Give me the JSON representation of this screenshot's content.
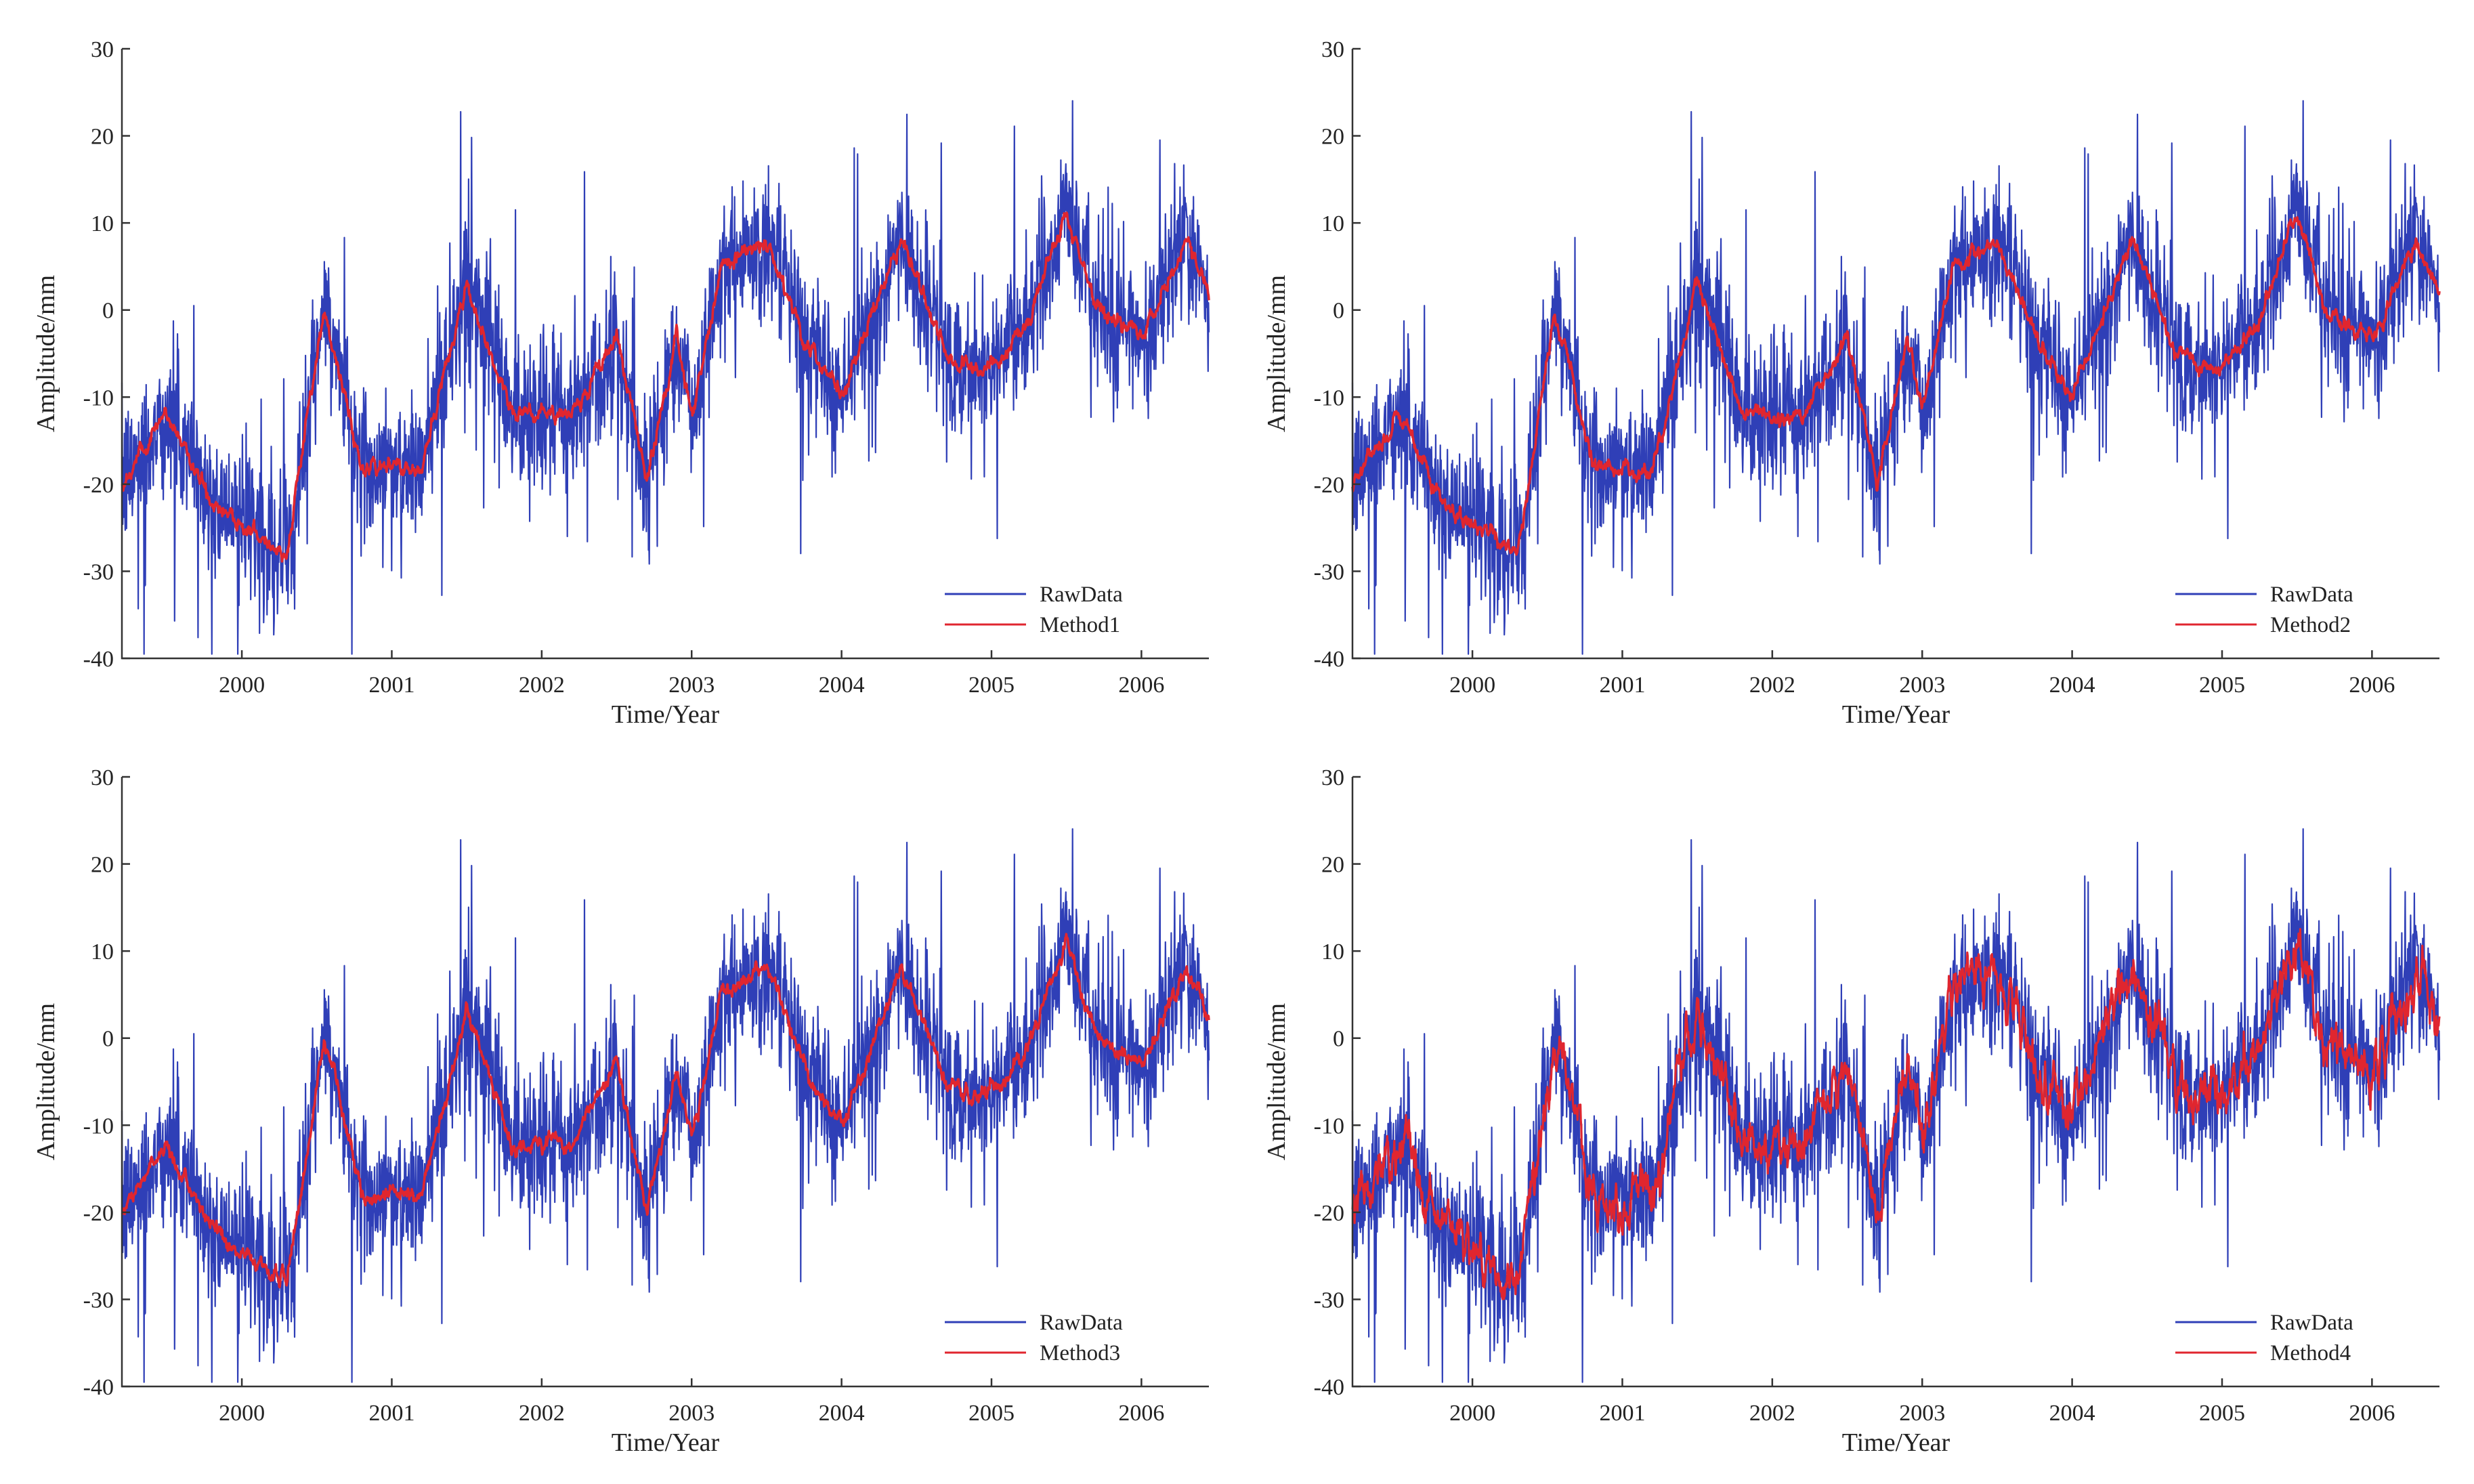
{
  "colors": {
    "raw": "#2f3fb7",
    "fitted": "#e0262f",
    "axis": "#333333",
    "background": "#ffffff"
  },
  "chart_data": [
    {
      "type": "line",
      "xlabel": "Time/Year",
      "ylabel": "Amplitude/mm",
      "xlim": [
        1999.2,
        2006.45
      ],
      "ylim": [
        -40,
        30
      ],
      "yticks": [
        30,
        20,
        10,
        0,
        -10,
        -20,
        -30,
        -40
      ],
      "xticks": [
        2000,
        2001,
        2002,
        2003,
        2004,
        2005,
        2006
      ],
      "legend_position": "bottom-right",
      "series": [
        {
          "name": "RawData",
          "color": "#2f3fb7",
          "kind": "raw daily displacement",
          "envelope": [
            [
              1999.2,
              -20
            ],
            [
              1999.5,
              -12
            ],
            [
              1999.8,
              -22
            ],
            [
              2000.05,
              -25
            ],
            [
              2000.3,
              -28
            ],
            [
              2000.55,
              0
            ],
            [
              2000.8,
              -18
            ],
            [
              2001.2,
              -18
            ],
            [
              2001.5,
              3
            ],
            [
              2001.8,
              -12
            ],
            [
              2002.2,
              -12
            ],
            [
              2002.5,
              -3
            ],
            [
              2002.7,
              -20
            ],
            [
              2002.9,
              -3
            ],
            [
              2003.0,
              -12
            ],
            [
              2003.2,
              5
            ],
            [
              2003.5,
              8
            ],
            [
              2003.8,
              -5
            ],
            [
              2004.0,
              -10
            ],
            [
              2004.4,
              8
            ],
            [
              2004.7,
              -5
            ],
            [
              2004.9,
              -7
            ],
            [
              2005.2,
              -3
            ],
            [
              2005.5,
              11
            ],
            [
              2005.7,
              0
            ],
            [
              2006.0,
              -3
            ],
            [
              2006.3,
              8
            ],
            [
              2006.45,
              2
            ]
          ]
        },
        {
          "name": "Method1",
          "color": "#e0262f",
          "kind": "fitted"
        }
      ]
    },
    {
      "type": "line",
      "xlabel": "Time/Year",
      "ylabel": "Amplitude/mm",
      "xlim": [
        1999.2,
        2006.45
      ],
      "ylim": [
        -40,
        30
      ],
      "yticks": [
        30,
        20,
        10,
        0,
        -10,
        -20,
        -30,
        -40
      ],
      "xticks": [
        2000,
        2001,
        2002,
        2003,
        2004,
        2005,
        2006
      ],
      "legend_position": "bottom-right",
      "series": [
        {
          "name": "RawData",
          "color": "#2f3fb7",
          "kind": "raw daily displacement",
          "envelope": [
            [
              1999.2,
              -20
            ],
            [
              1999.5,
              -12
            ],
            [
              1999.8,
              -22
            ],
            [
              2000.05,
              -25
            ],
            [
              2000.3,
              -28
            ],
            [
              2000.55,
              0
            ],
            [
              2000.8,
              -18
            ],
            [
              2001.2,
              -18
            ],
            [
              2001.5,
              3
            ],
            [
              2001.8,
              -12
            ],
            [
              2002.2,
              -12
            ],
            [
              2002.5,
              -3
            ],
            [
              2002.7,
              -20
            ],
            [
              2002.9,
              -3
            ],
            [
              2003.0,
              -12
            ],
            [
              2003.2,
              5
            ],
            [
              2003.5,
              8
            ],
            [
              2003.8,
              -5
            ],
            [
              2004.0,
              -10
            ],
            [
              2004.4,
              8
            ],
            [
              2004.7,
              -5
            ],
            [
              2004.9,
              -7
            ],
            [
              2005.2,
              -3
            ],
            [
              2005.5,
              11
            ],
            [
              2005.7,
              0
            ],
            [
              2006.0,
              -3
            ],
            [
              2006.3,
              8
            ],
            [
              2006.45,
              2
            ]
          ]
        },
        {
          "name": "Method2",
          "color": "#e0262f",
          "kind": "fitted"
        }
      ]
    },
    {
      "type": "line",
      "xlabel": "Time/Year",
      "ylabel": "Amplitude/mm",
      "xlim": [
        1999.2,
        2006.45
      ],
      "ylim": [
        -40,
        30
      ],
      "yticks": [
        30,
        20,
        10,
        0,
        -10,
        -20,
        -30,
        -40
      ],
      "xticks": [
        2000,
        2001,
        2002,
        2003,
        2004,
        2005,
        2006
      ],
      "legend_position": "bottom-right",
      "series": [
        {
          "name": "RawData",
          "color": "#2f3fb7",
          "kind": "raw daily displacement",
          "envelope": [
            [
              1999.2,
              -20
            ],
            [
              1999.5,
              -12
            ],
            [
              1999.8,
              -22
            ],
            [
              2000.05,
              -25
            ],
            [
              2000.3,
              -28
            ],
            [
              2000.55,
              0
            ],
            [
              2000.8,
              -18
            ],
            [
              2001.2,
              -18
            ],
            [
              2001.5,
              3
            ],
            [
              2001.8,
              -12
            ],
            [
              2002.2,
              -12
            ],
            [
              2002.5,
              -3
            ],
            [
              2002.7,
              -20
            ],
            [
              2002.9,
              -3
            ],
            [
              2003.0,
              -12
            ],
            [
              2003.2,
              5
            ],
            [
              2003.5,
              8
            ],
            [
              2003.8,
              -5
            ],
            [
              2004.0,
              -10
            ],
            [
              2004.4,
              8
            ],
            [
              2004.7,
              -5
            ],
            [
              2004.9,
              -7
            ],
            [
              2005.2,
              -3
            ],
            [
              2005.5,
              11
            ],
            [
              2005.7,
              0
            ],
            [
              2006.0,
              -3
            ],
            [
              2006.3,
              8
            ],
            [
              2006.45,
              2
            ]
          ]
        },
        {
          "name": "Method3",
          "color": "#e0262f",
          "kind": "fitted"
        }
      ]
    },
    {
      "type": "line",
      "xlabel": "Time/Year",
      "ylabel": "Amplitude/mm",
      "xlim": [
        1999.2,
        2006.45
      ],
      "ylim": [
        -40,
        30
      ],
      "yticks": [
        30,
        20,
        10,
        0,
        -10,
        -20,
        -30,
        -40
      ],
      "xticks": [
        2000,
        2001,
        2002,
        2003,
        2004,
        2005,
        2006
      ],
      "legend_position": "bottom-right",
      "series": [
        {
          "name": "RawData",
          "color": "#2f3fb7",
          "kind": "raw daily displacement",
          "envelope": [
            [
              1999.2,
              -20
            ],
            [
              1999.5,
              -12
            ],
            [
              1999.8,
              -22
            ],
            [
              2000.05,
              -25
            ],
            [
              2000.3,
              -28
            ],
            [
              2000.55,
              0
            ],
            [
              2000.8,
              -18
            ],
            [
              2001.2,
              -18
            ],
            [
              2001.5,
              3
            ],
            [
              2001.8,
              -12
            ],
            [
              2002.2,
              -12
            ],
            [
              2002.5,
              -3
            ],
            [
              2002.7,
              -20
            ],
            [
              2002.9,
              -3
            ],
            [
              2003.0,
              -12
            ],
            [
              2003.2,
              5
            ],
            [
              2003.5,
              8
            ],
            [
              2003.8,
              -5
            ],
            [
              2004.0,
              -10
            ],
            [
              2004.4,
              8
            ],
            [
              2004.7,
              -5
            ],
            [
              2004.9,
              -7
            ],
            [
              2005.2,
              -3
            ],
            [
              2005.5,
              11
            ],
            [
              2005.7,
              0
            ],
            [
              2006.0,
              -3
            ],
            [
              2006.3,
              8
            ],
            [
              2006.45,
              2
            ]
          ]
        },
        {
          "name": "Method4",
          "color": "#e0262f",
          "kind": "fitted (noisier)"
        }
      ]
    }
  ]
}
